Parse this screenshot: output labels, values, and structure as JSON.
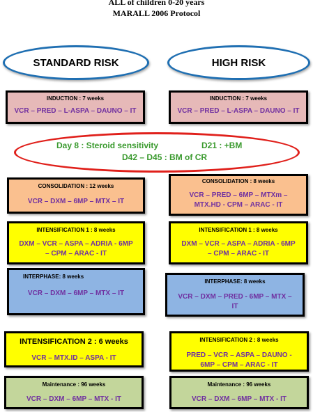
{
  "title": {
    "line1": "ALL of children 0-20 years",
    "line2": "MARALL 2006 Protocol"
  },
  "standard_risk": {
    "label": "STANDARD RISK",
    "induction": {
      "head": "INDUCTION : 7 weeks",
      "drugs": "VCR – PRED – L-ASPA – DAUNO – IT"
    },
    "consolidation": {
      "head": "CONSOLIDATION : 12 weeks",
      "drugs": "VCR – DXM – 6MP – MTX – IT"
    },
    "intensification1": {
      "head": "INTENSIFICATION 1 : 8 weeks",
      "drugs_line1": "DXM – VCR – ASPA – ADRIA - 6MP",
      "drugs_line2": "– CPM – ARAC - IT"
    },
    "interphase": {
      "head": "INTERPHASE: 8 weeks",
      "drugs": "VCR – DXM – 6MP – MTX – IT"
    },
    "intensification2": {
      "head": "INTENSIFICATION 2 : 6 weeks",
      "drugs": "VCR – MTX.ID – ASPA - IT"
    },
    "maintenance": {
      "head": "Maintenance : 96 weeks",
      "drugs": "VCR – DXM – 6MP – MTX - IT"
    }
  },
  "high_risk": {
    "label": "HIGH RISK",
    "induction": {
      "head": "INDUCTION : 7 weeks",
      "drugs": "VCR – PRED – L-ASPA – DAUNO – IT"
    },
    "consolidation": {
      "head": "CONSOLIDATION : 8 weeks",
      "drugs_line1": "VCR – PRED – 6MP – MTXm –",
      "drugs_line2": "MTX.HD - CPM – ARAC - IT"
    },
    "intensification1": {
      "head": "INTENSIFICATION 1 : 8 weeks",
      "drugs_line1": "DXM – VCR – ASPA – ADRIA - 6MP",
      "drugs_line2": "– CPM – ARAC - IT"
    },
    "interphase": {
      "head": "INTERPHASE: 8 weeks",
      "drugs_line1": "VCR – DXM – PRED - 6MP – MTX –",
      "drugs_line2": "IT"
    },
    "intensification2": {
      "head": "INTENSIFICATION 2 : 8 weeks",
      "drugs_line1": "PRED – VCR – ASPA – DAUNO -",
      "drugs_line2": "6MP – CPM – ARAC - IT"
    },
    "maintenance": {
      "head": "Maintenance : 96 weeks",
      "drugs": "VCR – DXM – 6MP – MTX - IT"
    }
  },
  "steroid_sensitivity": {
    "line1_left": "Day 8 : Steroid sensitivity",
    "line1_right": "D21 : +BM",
    "line2": "D42 – D45 : BM of CR"
  }
}
